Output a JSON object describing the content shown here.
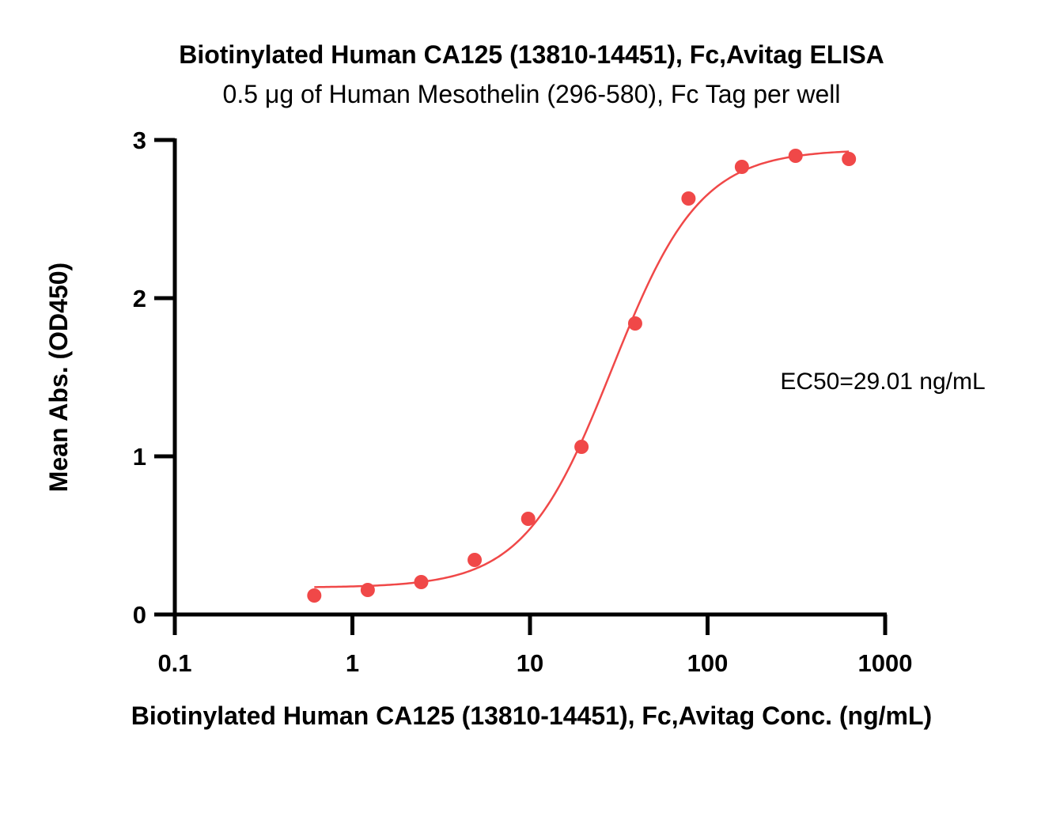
{
  "chart_data": {
    "type": "scatter",
    "title": "Biotinylated Human CA125 (13810-14451), Fc,Avitag ELISA",
    "subtitle": "0.5 μg of Human Mesothelin (296-580), Fc Tag per well",
    "xlabel": "Biotinylated Human CA125 (13810-14451), Fc,Avitag Conc. (ng/mL)",
    "ylabel": "Mean Abs. (OD450)",
    "xscale": "log",
    "xlim": [
      0.1,
      1000
    ],
    "ylim": [
      0,
      3
    ],
    "x_ticks": [
      0.1,
      1,
      10,
      100,
      1000
    ],
    "x_tick_labels": [
      "0.1",
      "1",
      "10",
      "100",
      "1000"
    ],
    "y_ticks": [
      0,
      1,
      2,
      3
    ],
    "y_tick_labels": [
      "0",
      "1",
      "2",
      "3"
    ],
    "grid": false,
    "legend": "none",
    "color": "#f04848",
    "series": [
      {
        "x": [
          0.61,
          1.22,
          2.44,
          4.88,
          9.77,
          19.5,
          39.1,
          78.1,
          156,
          313,
          625
        ],
        "y": [
          0.12,
          0.155,
          0.205,
          0.345,
          0.605,
          1.06,
          1.84,
          2.63,
          2.83,
          2.9,
          2.88
        ]
      }
    ],
    "fit": {
      "model": "4PL",
      "bottom": 0.17,
      "top": 2.94,
      "ec50": 29.01,
      "hill": 1.75,
      "x_range": [
        0.61,
        625
      ]
    },
    "annotation": "EC50=29.01 ng/mL"
  }
}
